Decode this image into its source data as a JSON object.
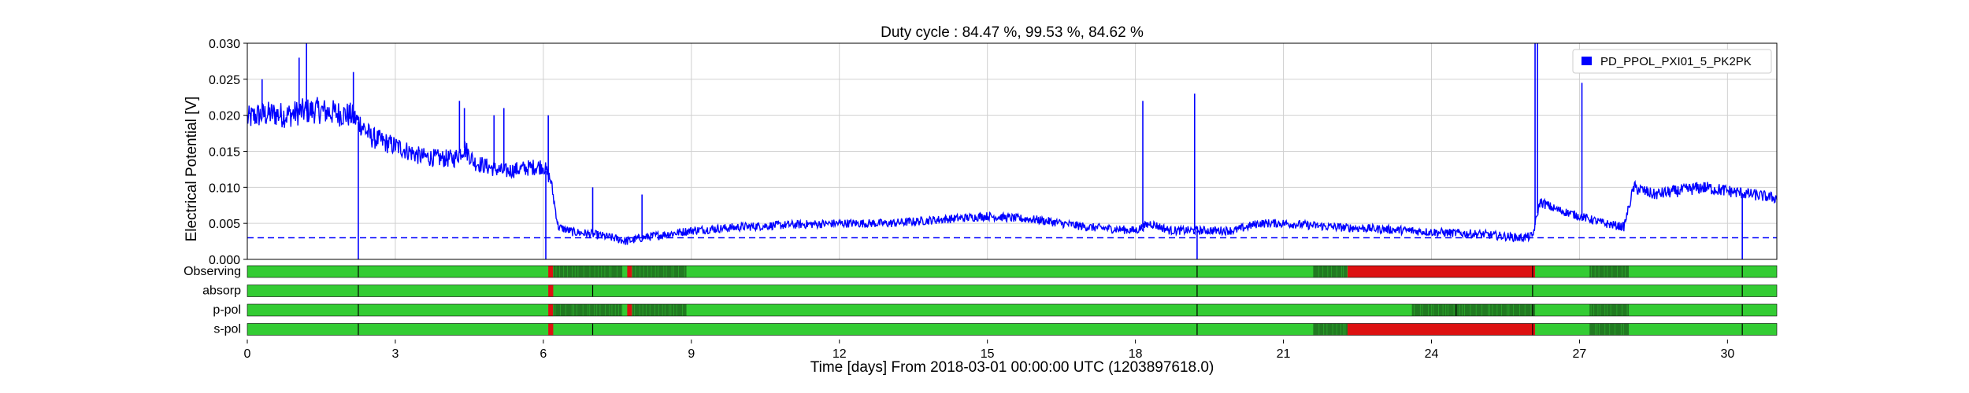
{
  "chart_data": {
    "type": "line",
    "title": "Duty cycle : 84.47 %, 99.53 %, 84.62 %",
    "xlabel": "Time [days] From 2018-03-01 00:00:00 UTC (1203897618.0)",
    "ylabel": "Electrical Potential [V]",
    "xlim": [
      0,
      31
    ],
    "ylim": [
      0,
      0.03
    ],
    "grid": true,
    "legend_position": "top-right",
    "x_ticks": [
      0,
      3,
      6,
      9,
      12,
      15,
      18,
      21,
      24,
      27,
      30
    ],
    "y_tick_labels": [
      "0.000",
      "0.005",
      "0.010",
      "0.015",
      "0.020",
      "0.025",
      "0.030"
    ],
    "threshold": {
      "value": 0.003,
      "style": "dashed",
      "color": "#0000ff"
    },
    "series": [
      {
        "name": "PD_PPOL_PXI01_5_PK2PK",
        "color": "#0000ff",
        "points": [
          [
            0.0,
            0.0195
          ],
          [
            0.2,
            0.02
          ],
          [
            0.5,
            0.0202
          ],
          [
            0.8,
            0.02
          ],
          [
            1.1,
            0.0205
          ],
          [
            1.4,
            0.0207
          ],
          [
            1.8,
            0.0203
          ],
          [
            2.1,
            0.02
          ],
          [
            2.3,
            0.0188
          ],
          [
            2.5,
            0.017
          ],
          [
            2.8,
            0.0162
          ],
          [
            3.1,
            0.0155
          ],
          [
            3.5,
            0.0143
          ],
          [
            3.9,
            0.014
          ],
          [
            4.2,
            0.014
          ],
          [
            4.4,
            0.0155
          ],
          [
            4.6,
            0.0135
          ],
          [
            4.9,
            0.0128
          ],
          [
            5.2,
            0.0122
          ],
          [
            5.5,
            0.0125
          ],
          [
            5.8,
            0.0128
          ],
          [
            6.0,
            0.013
          ],
          [
            6.15,
            0.011
          ],
          [
            6.3,
            0.0045
          ],
          [
            6.6,
            0.0038
          ],
          [
            7.0,
            0.0035
          ],
          [
            7.4,
            0.003
          ],
          [
            7.7,
            0.0025
          ],
          [
            8.0,
            0.003
          ],
          [
            8.5,
            0.0035
          ],
          [
            9.0,
            0.004
          ],
          [
            10.0,
            0.0045
          ],
          [
            11.0,
            0.0048
          ],
          [
            12.0,
            0.005
          ],
          [
            13.0,
            0.005
          ],
          [
            14.0,
            0.0055
          ],
          [
            15.0,
            0.006
          ],
          [
            16.0,
            0.0055
          ],
          [
            17.0,
            0.0045
          ],
          [
            18.0,
            0.004
          ],
          [
            18.3,
            0.005
          ],
          [
            18.7,
            0.004
          ],
          [
            19.3,
            0.004
          ],
          [
            20.0,
            0.004
          ],
          [
            20.5,
            0.005
          ],
          [
            21.0,
            0.005
          ],
          [
            22.0,
            0.0045
          ],
          [
            23.0,
            0.0042
          ],
          [
            24.0,
            0.0038
          ],
          [
            25.0,
            0.0035
          ],
          [
            25.8,
            0.003
          ],
          [
            26.05,
            0.0032
          ],
          [
            26.2,
            0.008
          ],
          [
            26.5,
            0.007
          ],
          [
            27.0,
            0.006
          ],
          [
            27.5,
            0.005
          ],
          [
            27.9,
            0.0045
          ],
          [
            28.1,
            0.01
          ],
          [
            28.5,
            0.009
          ],
          [
            29.0,
            0.0095
          ],
          [
            29.5,
            0.01
          ],
          [
            30.0,
            0.0095
          ],
          [
            30.5,
            0.009
          ],
          [
            31.0,
            0.0085
          ]
        ],
        "spikes": [
          [
            0.3,
            0.025
          ],
          [
            1.05,
            0.028
          ],
          [
            1.2,
            0.03
          ],
          [
            2.15,
            0.026
          ],
          [
            2.25,
            0.0
          ],
          [
            4.3,
            0.022
          ],
          [
            4.4,
            0.021
          ],
          [
            5.0,
            0.02
          ],
          [
            5.2,
            0.021
          ],
          [
            6.05,
            0.0
          ],
          [
            6.1,
            0.02
          ],
          [
            7.0,
            0.01
          ],
          [
            8.0,
            0.009
          ],
          [
            18.15,
            0.022
          ],
          [
            19.2,
            0.023
          ],
          [
            19.25,
            0.0
          ],
          [
            26.1,
            0.03
          ],
          [
            26.15,
            0.03
          ],
          [
            27.05,
            0.0245
          ],
          [
            30.3,
            0.0
          ]
        ]
      }
    ],
    "segment_tracks": [
      {
        "label": "Observing",
        "segments": [
          {
            "start": 0.0,
            "end": 6.05,
            "state": "active"
          },
          {
            "start": 6.1,
            "end": 6.2,
            "state": "flagged"
          },
          {
            "start": 6.2,
            "end": 7.6,
            "state": "dark"
          },
          {
            "start": 7.7,
            "end": 7.8,
            "state": "flagged"
          },
          {
            "start": 7.8,
            "end": 8.9,
            "state": "dark"
          },
          {
            "start": 8.9,
            "end": 21.6,
            "state": "active"
          },
          {
            "start": 21.6,
            "end": 22.3,
            "state": "dark"
          },
          {
            "start": 22.3,
            "end": 26.1,
            "state": "flagged"
          },
          {
            "start": 26.1,
            "end": 27.2,
            "state": "active"
          },
          {
            "start": 27.2,
            "end": 28.0,
            "state": "dark"
          },
          {
            "start": 28.0,
            "end": 31.0,
            "state": "active"
          }
        ],
        "markers": [
          2.25,
          19.25,
          26.05,
          30.3
        ]
      },
      {
        "label": "absorp",
        "segments": [
          {
            "start": 0.0,
            "end": 6.05,
            "state": "active"
          },
          {
            "start": 6.1,
            "end": 6.2,
            "state": "flagged"
          },
          {
            "start": 6.2,
            "end": 31.0,
            "state": "active"
          }
        ],
        "markers": [
          2.25,
          7.0,
          19.25,
          26.05,
          30.3
        ]
      },
      {
        "label": "p-pol",
        "segments": [
          {
            "start": 0.0,
            "end": 6.05,
            "state": "active"
          },
          {
            "start": 6.1,
            "end": 6.2,
            "state": "flagged"
          },
          {
            "start": 6.2,
            "end": 7.6,
            "state": "dark"
          },
          {
            "start": 7.7,
            "end": 7.8,
            "state": "flagged"
          },
          {
            "start": 7.8,
            "end": 8.9,
            "state": "dark"
          },
          {
            "start": 8.9,
            "end": 23.6,
            "state": "active"
          },
          {
            "start": 23.6,
            "end": 26.1,
            "state": "dark"
          },
          {
            "start": 26.1,
            "end": 27.2,
            "state": "active"
          },
          {
            "start": 27.2,
            "end": 28.0,
            "state": "dark"
          },
          {
            "start": 28.0,
            "end": 31.0,
            "state": "active"
          }
        ],
        "markers": [
          2.25,
          19.25,
          24.5,
          26.05,
          30.3
        ]
      },
      {
        "label": "s-pol",
        "segments": [
          {
            "start": 0.0,
            "end": 6.05,
            "state": "active"
          },
          {
            "start": 6.1,
            "end": 6.2,
            "state": "flagged"
          },
          {
            "start": 6.2,
            "end": 21.6,
            "state": "active"
          },
          {
            "start": 21.6,
            "end": 22.3,
            "state": "dark"
          },
          {
            "start": 22.3,
            "end": 26.1,
            "state": "flagged"
          },
          {
            "start": 26.1,
            "end": 27.2,
            "state": "active"
          },
          {
            "start": 27.2,
            "end": 28.0,
            "state": "dark"
          },
          {
            "start": 28.0,
            "end": 31.0,
            "state": "active"
          }
        ],
        "markers": [
          2.25,
          7.0,
          19.25,
          26.05,
          30.3
        ]
      }
    ],
    "segment_colors": {
      "active": "#33cc33",
      "dark": "#1e6b1e",
      "flagged": "#dd1111",
      "marker": "#000000"
    }
  }
}
